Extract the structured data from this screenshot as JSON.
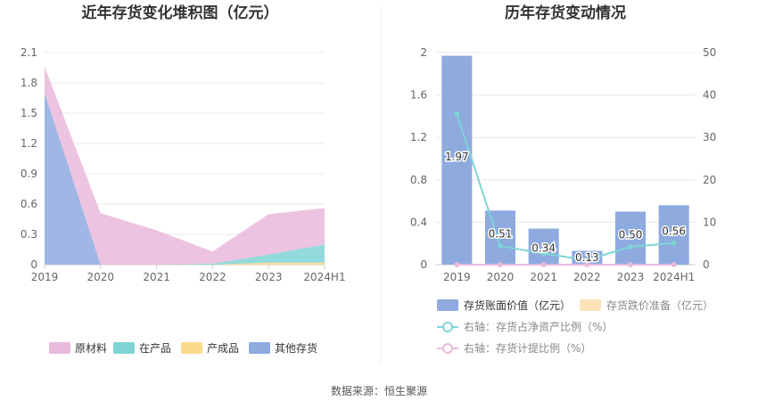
{
  "source": "数据来源：恒生聚源",
  "chart_data": [
    {
      "type": "area",
      "title": "近年存货变化堆积图（亿元）",
      "categories": [
        "2019",
        "2020",
        "2021",
        "2022",
        "2023",
        "2024H1"
      ],
      "ylim": [
        0,
        2.1
      ],
      "yticks": [
        "0",
        "0.3",
        "0.6",
        "0.9",
        "1.2",
        "1.5",
        "1.8",
        "2.1"
      ],
      "stacked": true,
      "grid": true,
      "legend_position": "bottom",
      "series": [
        {
          "name": "其他存货",
          "color": "#8eaadf",
          "values": [
            1.7,
            0.0,
            0.0,
            0.0,
            0.0,
            0.0
          ]
        },
        {
          "name": "产成品",
          "color": "#fbd98a",
          "values": [
            0.0,
            0.0,
            0.0,
            0.0,
            0.02,
            0.02
          ]
        },
        {
          "name": "在产品",
          "color": "#7fd4d6",
          "values": [
            0.0,
            0.0,
            0.0,
            0.01,
            0.08,
            0.18
          ]
        },
        {
          "name": "原材料",
          "color": "#e9b9dc",
          "values": [
            0.26,
            0.51,
            0.34,
            0.12,
            0.4,
            0.36
          ]
        }
      ],
      "legend_order": [
        "原材料",
        "在产品",
        "产成品",
        "其他存货"
      ]
    },
    {
      "type": "bar",
      "title": "历年存货变动情况",
      "categories": [
        "2019",
        "2020",
        "2021",
        "2022",
        "2023",
        "2024H1"
      ],
      "ylim": [
        0,
        2
      ],
      "yticks": [
        "0",
        "0.4",
        "0.8",
        "1.2",
        "1.6",
        "2"
      ],
      "y2lim": [
        0,
        50
      ],
      "y2ticks": [
        "0",
        "10",
        "20",
        "30",
        "40",
        "50"
      ],
      "grid": true,
      "legend_position": "bottom",
      "series": [
        {
          "name": "存货账面价值（亿元）",
          "axis": "left",
          "kind": "bar",
          "color": "#8eaadf",
          "values": [
            1.97,
            0.51,
            0.34,
            0.13,
            0.5,
            0.56
          ],
          "labels": [
            "1.97",
            "0.51",
            "0.34",
            "0.13",
            "0.50",
            "0.56"
          ]
        },
        {
          "name": "存货跌价准备（亿元）",
          "axis": "left",
          "kind": "bar",
          "color": "#fde3b8",
          "values": [
            0,
            0,
            0,
            0,
            0,
            0
          ]
        },
        {
          "name": "右轴：存货占净资产比例（%）",
          "axis": "right",
          "kind": "line",
          "color": "#7fd4d6",
          "values": [
            35.5,
            4.4,
            2.6,
            1.1,
            4.2,
            5.1
          ]
        },
        {
          "name": "右轴：存货计提比例（%）",
          "axis": "right",
          "kind": "line",
          "color": "#e9b9dc",
          "values": [
            0,
            0,
            0,
            0,
            0,
            0
          ]
        }
      ]
    }
  ]
}
